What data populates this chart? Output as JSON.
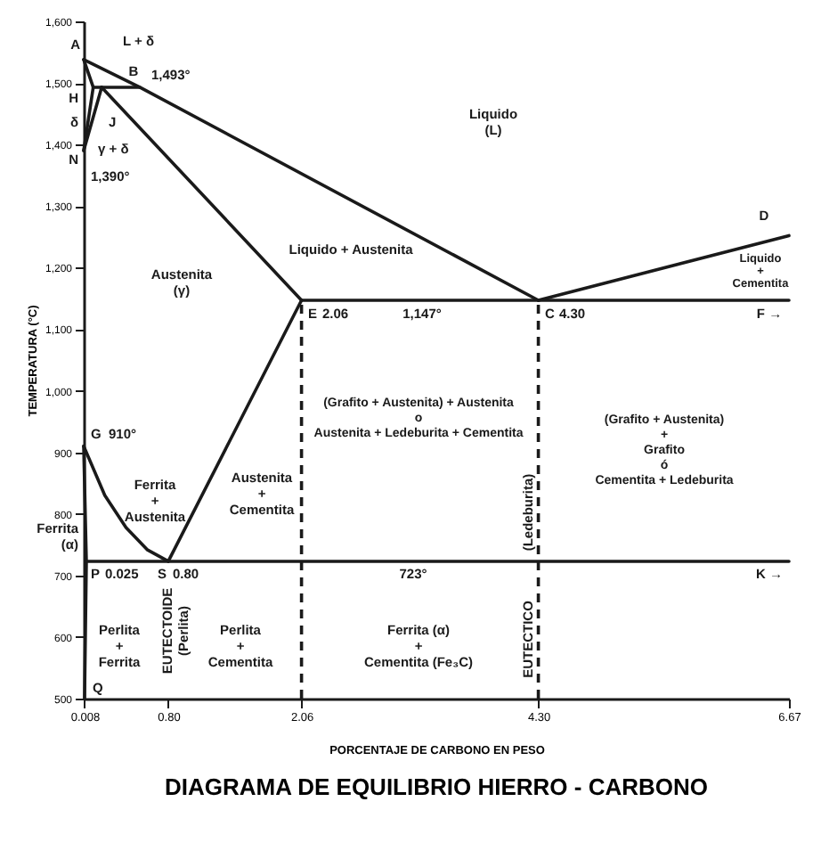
{
  "chart_data": {
    "type": "line",
    "title": "DIAGRAMA DE EQUILIBRIO HIERRO - CARBONO",
    "xlabel": "PORCENTAJE DE CARBONO EN PESO",
    "ylabel": "TEMPERATURA (°C)",
    "xlim": [
      0,
      6.67
    ],
    "xticks": [
      0.008,
      {
        "value": 0.8,
        "label": "0.80"
      },
      2.06,
      {
        "value": 4.3,
        "label": "4.30"
      },
      6.67
    ],
    "ylim": [
      500,
      1600
    ],
    "yticks": [
      500,
      600,
      700,
      800,
      900,
      {
        "value": 1000,
        "label": "1,000"
      },
      {
        "value": 1100,
        "label": "1,100"
      },
      {
        "value": 1200,
        "label": "1,200"
      },
      {
        "value": 1300,
        "label": "1,300"
      },
      {
        "value": 1400,
        "label": "1,400"
      },
      {
        "value": 1500,
        "label": "1,500"
      },
      {
        "value": 1600,
        "label": "1,600"
      }
    ],
    "series": [
      {
        "color": "#1a1a1a",
        "x": [
          0,
          0.53,
          4.3
        ],
        "values": [
          1538,
          1493,
          1147
        ]
      },
      {
        "color": "#1a1a1a",
        "x": [
          4.3,
          6.67
        ],
        "values": [
          1147,
          1252
        ]
      },
      {
        "color": "#1a1a1a",
        "x": [
          0,
          0.09
        ],
        "values": [
          1538,
          1493
        ]
      },
      {
        "color": "#1a1a1a",
        "x": [
          0.09,
          0.53
        ],
        "values": [
          1493,
          1493
        ]
      },
      {
        "color": "#1a1a1a",
        "x": [
          0.17,
          2.06
        ],
        "values": [
          1493,
          1147
        ]
      },
      {
        "color": "#1a1a1a",
        "x": [
          0.09,
          0
        ],
        "values": [
          1493,
          1390
        ]
      },
      {
        "color": "#1a1a1a",
        "x": [
          0.17,
          0
        ],
        "values": [
          1493,
          1390
        ]
      },
      {
        "color": "#1a1a1a",
        "x": [
          2.06,
          6.67
        ],
        "values": [
          1147,
          1147
        ]
      },
      {
        "color": "#1a1a1a",
        "x": [
          2.06,
          0.8
        ],
        "values": [
          1147,
          723
        ]
      },
      {
        "color": "#1a1a1a",
        "x": [
          0,
          0.2,
          0.4,
          0.6,
          0.8
        ],
        "values": [
          910,
          830,
          778,
          742,
          723
        ]
      },
      {
        "color": "#1a1a1a",
        "x": [
          0,
          0.025,
          0.008
        ],
        "values": [
          910,
          723,
          500
        ]
      },
      {
        "color": "#1a1a1a",
        "x": [
          0.025,
          6.67
        ],
        "values": [
          723,
          723
        ]
      },
      {
        "color": "#1a1a1a",
        "line_style": "dashed",
        "x": [
          2.06,
          2.06
        ],
        "values": [
          500,
          1147
        ]
      },
      {
        "color": "#1a1a1a",
        "line_style": "dashed",
        "x": [
          4.3,
          4.3
        ],
        "values": [
          500,
          1147
        ]
      }
    ],
    "annotations": [
      "A",
      "L + δ",
      "B",
      "1,493°",
      "H",
      "δ",
      "J",
      "γ + δ",
      "N",
      "1,390°",
      "Liquido\n(L)",
      "Liquido + Austenita",
      "D",
      "Liquido\n+\nCementita",
      "Austenita\n(γ)",
      "E",
      "2.06",
      "1,147°",
      "C",
      "4.30",
      "F →",
      "(Grafito + Austenita) + Austenita\no\nAustenita + Ledeburita + Cementita",
      "(Grafito + Austenita)\n+\nGrafito\nó\nCementita + Ledeburita",
      "G",
      "910°",
      "Ferrita\n+\nAustenita",
      "Austenita\n+\nCementita",
      "Ferrita\n(α)",
      "P",
      "0.025",
      "S",
      "0.80",
      "723°",
      "K →",
      "Perlita\n+\nFerrita",
      "EUTECTOIDE\n(Perlita)",
      "Perlita\n+\nCementita",
      "Ferrita (α)\n+\nCementita (Fe₃C)",
      "EUTECTICO",
      "(Ledeburita)",
      "Q"
    ]
  }
}
